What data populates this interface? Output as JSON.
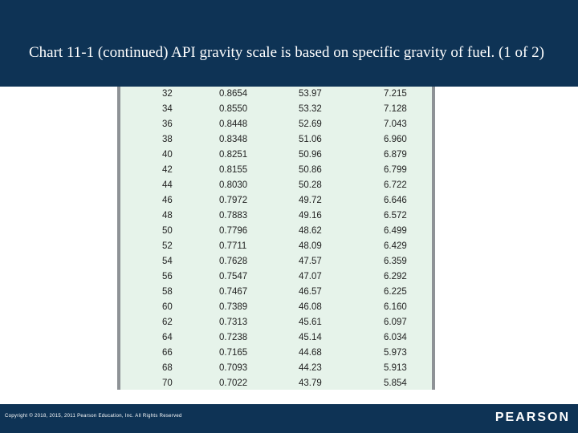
{
  "slide": {
    "title": "Chart 11-1 (continued) API gravity scale is based on specific gravity of fuel. (1 of 2)",
    "copyright": "Copyright © 2018, 2015, 2011 Pearson Education, Inc. All Rights Reserved",
    "logo": "PEARSON"
  },
  "table": {
    "rows": [
      [
        "32",
        "0.8654",
        "53.97",
        "7.215"
      ],
      [
        "34",
        "0.8550",
        "53.32",
        "7.128"
      ],
      [
        "36",
        "0.8448",
        "52.69",
        "7.043"
      ],
      [
        "38",
        "0.8348",
        "51.06",
        "6.960"
      ],
      [
        "40",
        "0.8251",
        "50.96",
        "6.879"
      ],
      [
        "42",
        "0.8155",
        "50.86",
        "6.799"
      ],
      [
        "44",
        "0.8030",
        "50.28",
        "6.722"
      ],
      [
        "46",
        "0.7972",
        "49.72",
        "6.646"
      ],
      [
        "48",
        "0.7883",
        "49.16",
        "6.572"
      ],
      [
        "50",
        "0.7796",
        "48.62",
        "6.499"
      ],
      [
        "52",
        "0.7711",
        "48.09",
        "6.429"
      ],
      [
        "54",
        "0.7628",
        "47.57",
        "6.359"
      ],
      [
        "56",
        "0.7547",
        "47.07",
        "6.292"
      ],
      [
        "58",
        "0.7467",
        "46.57",
        "6.225"
      ],
      [
        "60",
        "0.7389",
        "46.08",
        "6.160"
      ],
      [
        "62",
        "0.7313",
        "45.61",
        "6.097"
      ],
      [
        "64",
        "0.7238",
        "45.14",
        "6.034"
      ],
      [
        "66",
        "0.7165",
        "44.68",
        "5.973"
      ],
      [
        "68",
        "0.7093",
        "44.23",
        "5.913"
      ],
      [
        "70",
        "0.7022",
        "43.79",
        "5.854"
      ]
    ]
  },
  "colors": {
    "header": "#0e3355",
    "table_background": "#e6f3ea",
    "table_border": "#8e9296"
  }
}
